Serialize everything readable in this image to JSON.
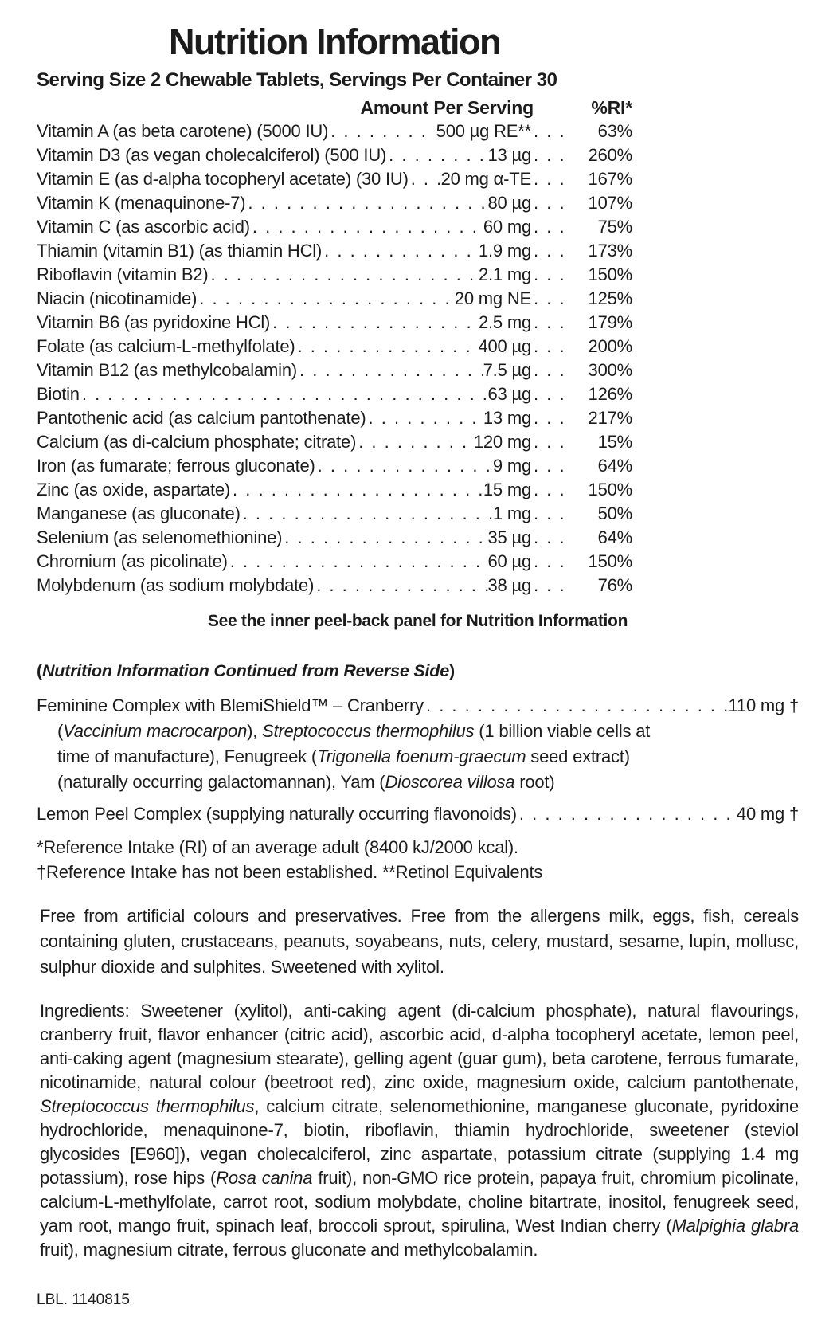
{
  "title": "Nutrition Information",
  "serving_line": "Serving Size 2 Chewable Tablets, Servings Per Container 30",
  "columns": {
    "amount": "Amount Per Serving",
    "ri": "%RI*"
  },
  "table": {
    "rows": [
      {
        "name": "Vitamin A (as beta carotene) (5000 IU)",
        "amount": "500 µg RE**",
        "ri": "63%"
      },
      {
        "name": "Vitamin D3 (as vegan cholecalciferol) (500 IU)",
        "amount": "13 µg",
        "ri": "260%"
      },
      {
        "name": "Vitamin E (as d-alpha tocopheryl acetate) (30 IU)",
        "amount": "20 mg α-TE",
        "ri": "167%"
      },
      {
        "name": "Vitamin K (menaquinone-7)",
        "amount": "80 µg",
        "ri": "107%"
      },
      {
        "name": "Vitamin C (as ascorbic acid)",
        "amount": "60 mg",
        "ri": "75%"
      },
      {
        "name": "Thiamin (vitamin B1) (as thiamin HCl)",
        "amount": "1.9 mg",
        "ri": "173%"
      },
      {
        "name": "Riboflavin (vitamin B2)",
        "amount": "2.1 mg",
        "ri": "150%"
      },
      {
        "name": "Niacin (nicotinamide)",
        "amount": "20 mg NE",
        "ri": "125%"
      },
      {
        "name": "Vitamin B6 (as pyridoxine HCl)",
        "amount": "2.5 mg",
        "ri": "179%"
      },
      {
        "name": "Folate (as calcium-L-methylfolate)",
        "amount": "400 µg",
        "ri": "200%"
      },
      {
        "name": "Vitamin B12 (as methylcobalamin)",
        "amount": "7.5 µg",
        "ri": "300%"
      },
      {
        "name": "Biotin",
        "amount": "63 µg",
        "ri": "126%"
      },
      {
        "name": "Pantothenic acid (as calcium pantothenate)",
        "amount": "13 mg",
        "ri": "217%"
      },
      {
        "name": "Calcium (as di-calcium phosphate; citrate)",
        "amount": "120 mg",
        "ri": "15%"
      },
      {
        "name": "Iron (as fumarate; ferrous gluconate)",
        "amount": "9 mg",
        "ri": "64%"
      },
      {
        "name": "Zinc (as oxide, aspartate)",
        "amount": "15 mg",
        "ri": "150%"
      },
      {
        "name": "Manganese (as gluconate)",
        "amount": "1 mg",
        "ri": "50%"
      },
      {
        "name": "Selenium (as selenomethionine)",
        "amount": "35 µg",
        "ri": "64%"
      },
      {
        "name": "Chromium (as picolinate)",
        "amount": "60 µg",
        "ri": "150%"
      },
      {
        "name": "Molybdenum (as sodium molybdate)",
        "amount": "38 µg",
        "ri": "76%"
      }
    ]
  },
  "peel_note": "See the inner peel-back panel for Nutrition Information",
  "continued_note": [
    {
      "t": "("
    },
    {
      "t": "Nutrition Information Continued from Reverse Side",
      "i": true
    },
    {
      "t": ")"
    }
  ],
  "feminine_complex": {
    "name": "Feminine Complex with BlemiShield™ – Cranberry",
    "amount": "110 mg †",
    "detail_lines": [
      [
        {
          "t": "("
        },
        {
          "t": "Vaccinium macrocarpon",
          "i": true
        },
        {
          "t": "), "
        },
        {
          "t": "Streptococcus thermophilus",
          "i": true
        },
        {
          "t": " (1 billion viable cells at"
        }
      ],
      [
        {
          "t": "time of manufacture), Fenugreek ("
        },
        {
          "t": "Trigonella foenum-graecum",
          "i": true
        },
        {
          "t": " seed extract)"
        }
      ],
      [
        {
          "t": "(naturally occurring galactomannan), Yam ("
        },
        {
          "t": "Dioscorea villosa",
          "i": true
        },
        {
          "t": " root)"
        }
      ]
    ]
  },
  "lemon_complex": {
    "name": "Lemon Peel Complex (supplying naturally occurring flavonoids)",
    "amount": "40 mg †"
  },
  "footnotes": [
    "*Reference Intake (RI) of an average adult (8400 kJ/2000 kcal).",
    "†Reference Intake has not been established.  **Retinol Equivalents"
  ],
  "free_from_paragraph": "Free from artificial colours and preservatives. Free from the allergens milk, eggs, fish, cereals containing gluten, crustaceans, peanuts, soyabeans, nuts, celery, mustard, sesame, lupin, mollusc, sulphur dioxide and sulphites. Sweetened with xylitol.",
  "ingredients_paragraph": [
    {
      "t": "Ingredients: Sweetener (xylitol), anti-caking agent (di-calcium phosphate), natural flavourings, cranberry fruit, flavor enhancer (citric acid), ascorbic acid, d-alpha tocopheryl acetate, lemon peel, anti-caking agent (magnesium stearate), gelling agent (guar gum), beta carotene, ferrous fumarate, nicotinamide, natural colour (beetroot red), zinc oxide, magnesium oxide, calcium pantothenate, "
    },
    {
      "t": "Streptococcus thermophilus",
      "i": true
    },
    {
      "t": ", calcium citrate, selenomethionine, manganese gluconate, pyridoxine hydrochloride, menaquinone-7, biotin, riboflavin, thiamin hydrochloride, sweetener (steviol glycosides [E960]), vegan cholecalciferol, zinc aspartate, potassium citrate (supplying 1.4 mg potassium), rose hips ("
    },
    {
      "t": "Rosa canina",
      "i": true
    },
    {
      "t": " fruit), non-GMO rice protein, papaya fruit, chromium picolinate, calcium-L-methylfolate, carrot root, sodium molybdate, choline bitartrate, inositol, fenugreek seed, yam root, mango fruit, spinach leaf, broccoli sprout, spirulina, West Indian cherry ("
    },
    {
      "t": "Malpighia glabra",
      "i": true
    },
    {
      "t": " fruit), magnesium citrate, ferrous gluconate and methylcobalamin."
    }
  ],
  "lbl_code": "LBL. 1140815"
}
